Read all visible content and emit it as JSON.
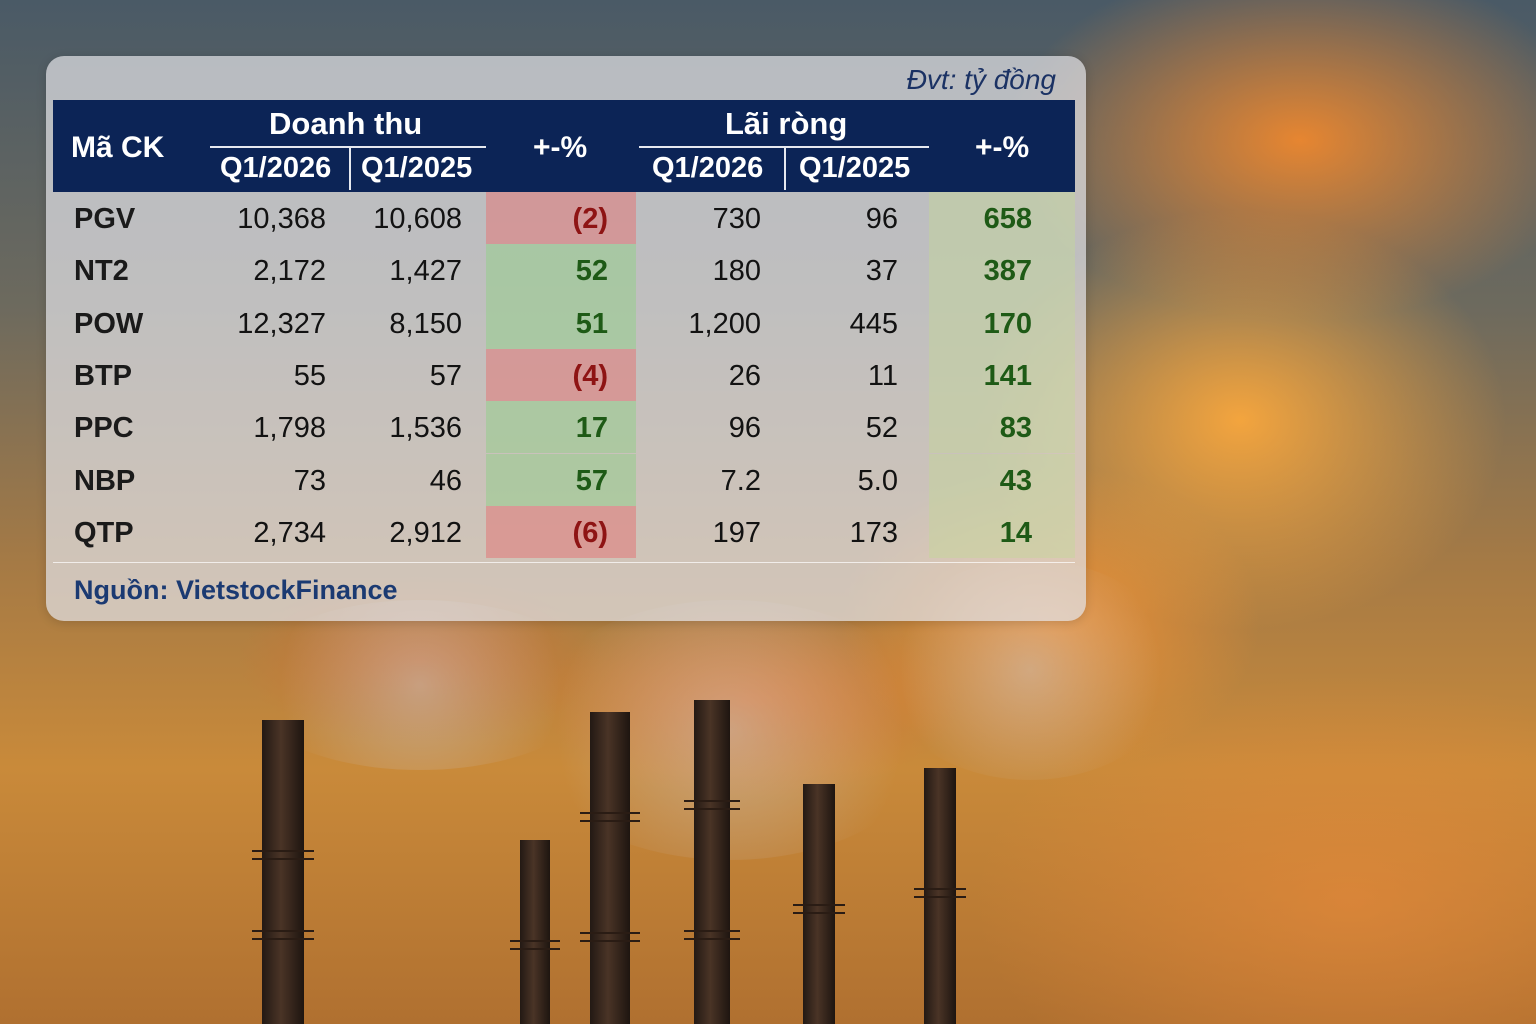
{
  "unit_note": "Đvt: tỷ đồng",
  "header": {
    "ticker": "Mã CK",
    "revenue_group": "Doanh thu",
    "profit_group": "Lãi ròng",
    "q2026": "Q1/2026",
    "q2025": "Q1/2025",
    "change": "+-%"
  },
  "source": "Nguồn: VietstockFinance",
  "colors": {
    "header_bg": "#0c2456",
    "negative_fill": "#e27878",
    "positive_fill": "#96cd8c",
    "negative_text": "#8e1414",
    "positive_text": "#1e5a16"
  },
  "chart_data": {
    "type": "table",
    "columns": [
      "Mã CK",
      "Doanh thu Q1/2026",
      "Doanh thu Q1/2025",
      "+-%",
      "Lãi ròng Q1/2026",
      "Lãi ròng Q1/2025",
      "+-%"
    ],
    "rows": [
      {
        "ticker": "PGV",
        "rev_2026": "10,368",
        "rev_2025": "10,608",
        "rev_chg": "(2)",
        "rev_neg": true,
        "np_2026": "730",
        "np_2025": "96",
        "np_chg": "658"
      },
      {
        "ticker": "NT2",
        "rev_2026": "2,172",
        "rev_2025": "1,427",
        "rev_chg": "52",
        "rev_neg": false,
        "np_2026": "180",
        "np_2025": "37",
        "np_chg": "387"
      },
      {
        "ticker": "POW",
        "rev_2026": "12,327",
        "rev_2025": "8,150",
        "rev_chg": "51",
        "rev_neg": false,
        "np_2026": "1,200",
        "np_2025": "445",
        "np_chg": "170"
      },
      {
        "ticker": "BTP",
        "rev_2026": "55",
        "rev_2025": "57",
        "rev_chg": "(4)",
        "rev_neg": true,
        "np_2026": "26",
        "np_2025": "11",
        "np_chg": "141"
      },
      {
        "ticker": "PPC",
        "rev_2026": "1,798",
        "rev_2025": "1,536",
        "rev_chg": "17",
        "rev_neg": false,
        "np_2026": "96",
        "np_2025": "52",
        "np_chg": "83"
      },
      {
        "ticker": "NBP",
        "rev_2026": "73",
        "rev_2025": "46",
        "rev_chg": "57",
        "rev_neg": false,
        "np_2026": "7.2",
        "np_2025": "5.0",
        "np_chg": "43"
      },
      {
        "ticker": "QTP",
        "rev_2026": "2,734",
        "rev_2025": "2,912",
        "rev_chg": "(6)",
        "rev_neg": true,
        "np_2026": "197",
        "np_2025": "173",
        "np_chg": "14"
      }
    ]
  }
}
